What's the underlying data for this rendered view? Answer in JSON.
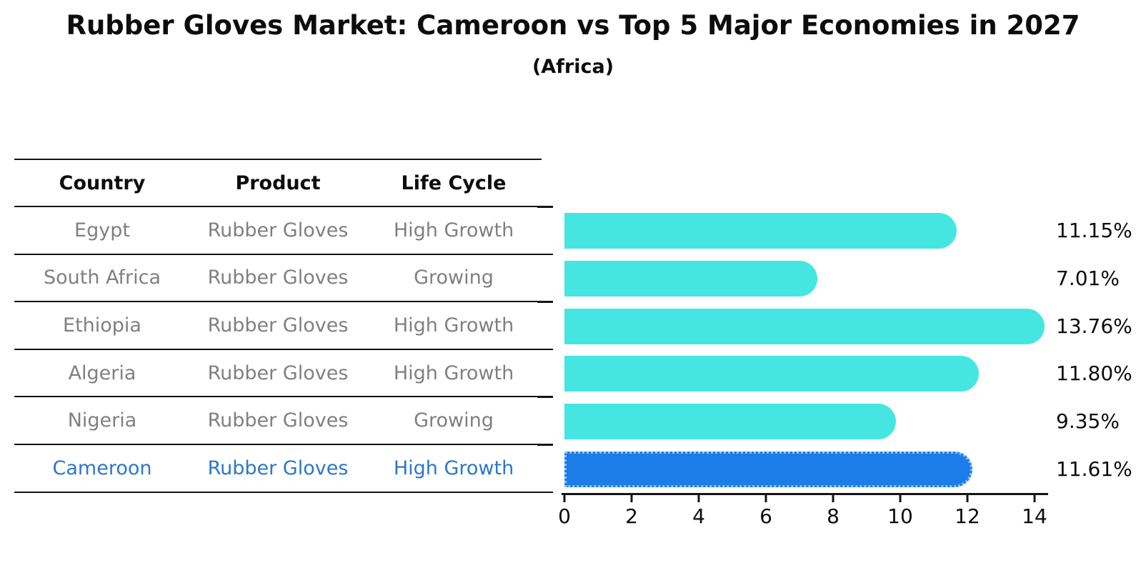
{
  "title": "Rubber Gloves Market: Cameroon vs Top 5 Major Economies in 2027",
  "subtitle": "(Africa)",
  "table": {
    "headers": [
      "Country",
      "Product",
      "Life Cycle"
    ],
    "rows": [
      {
        "country": "Egypt",
        "product": "Rubber Gloves",
        "life_cycle": "High Growth",
        "highlight": false
      },
      {
        "country": "South Africa",
        "product": "Rubber Gloves",
        "life_cycle": "Growing",
        "highlight": false
      },
      {
        "country": "Ethiopia",
        "product": "Rubber Gloves",
        "life_cycle": "High Growth",
        "highlight": false
      },
      {
        "country": "Algeria",
        "product": "Rubber Gloves",
        "life_cycle": "High Growth",
        "highlight": false
      },
      {
        "country": "Nigeria",
        "product": "Rubber Gloves",
        "life_cycle": "Growing",
        "highlight": false
      },
      {
        "country": "Cameroon",
        "product": "Rubber Gloves",
        "life_cycle": "High Growth",
        "highlight": true
      }
    ]
  },
  "chart_data": {
    "type": "bar",
    "orientation": "horizontal",
    "title": "Rubber Gloves Market: Cameroon vs Top 5 Major Economies in 2027 (Africa)",
    "categories": [
      "Egypt",
      "South Africa",
      "Ethiopia",
      "Algeria",
      "Nigeria",
      "Cameroon"
    ],
    "values": [
      11.15,
      7.01,
      13.76,
      11.8,
      9.35,
      11.61
    ],
    "value_labels": [
      "11.15%",
      "7.01%",
      "13.76%",
      "11.80%",
      "9.35%",
      "11.61%"
    ],
    "highlight_index": 5,
    "xlabel": "",
    "ylabel": "",
    "xlim": [
      0,
      14.4
    ],
    "xticks": [
      0,
      2,
      4,
      6,
      8,
      10,
      12,
      14
    ],
    "xtick_labels": [
      "0",
      "2",
      "4",
      "6",
      "8",
      "10",
      "12",
      "14"
    ],
    "grid": false,
    "legend": false
  },
  "colors": {
    "bar": "#45E6E1",
    "highlight_bar": "#1C7CE8",
    "highlight_border": "#8CC6F6",
    "highlight_text": "#2D76CC",
    "row_text": "#808080",
    "axis": "#141414"
  }
}
